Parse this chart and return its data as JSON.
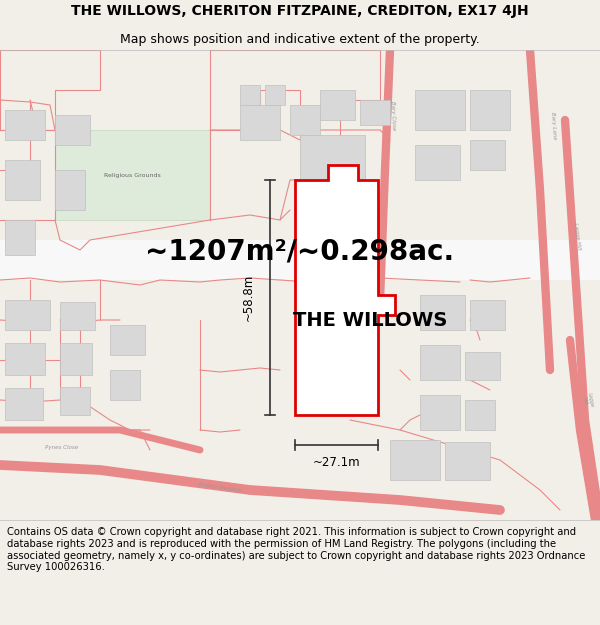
{
  "title_line1": "THE WILLOWS, CHERITON FITZPAINE, CREDITON, EX17 4JH",
  "title_line2": "Map shows position and indicative extent of the property.",
  "area_text": "~1207m²/~0.298ac.",
  "property_label": "THE WILLOWS",
  "dim_height": "~58.8m",
  "dim_width": "~27.1m",
  "footer_text": "Contains OS data © Crown copyright and database right 2021. This information is subject to Crown copyright and database rights 2023 and is reproduced with the permission of HM Land Registry. The polygons (including the associated geometry, namely x, y co-ordinates) are subject to Crown copyright and database rights 2023 Ordnance Survey 100026316.",
  "bg_color": "#f2efe8",
  "map_bg": "#ffffff",
  "plot_outline_color": "#dd0000",
  "road_parcel_color": "#e88888",
  "building_fill": "#d8d8d8",
  "building_edge": "#c0c0c0",
  "relig_fill": "#deeada",
  "relig_edge": "#c5d8bc",
  "dim_line_color": "#333333",
  "title_fontsize": 10,
  "subtitle_fontsize": 9,
  "area_fontsize": 20,
  "label_fontsize": 14,
  "dim_fontsize": 8.5,
  "road_label_fontsize": 5,
  "footer_fontsize": 7.2
}
